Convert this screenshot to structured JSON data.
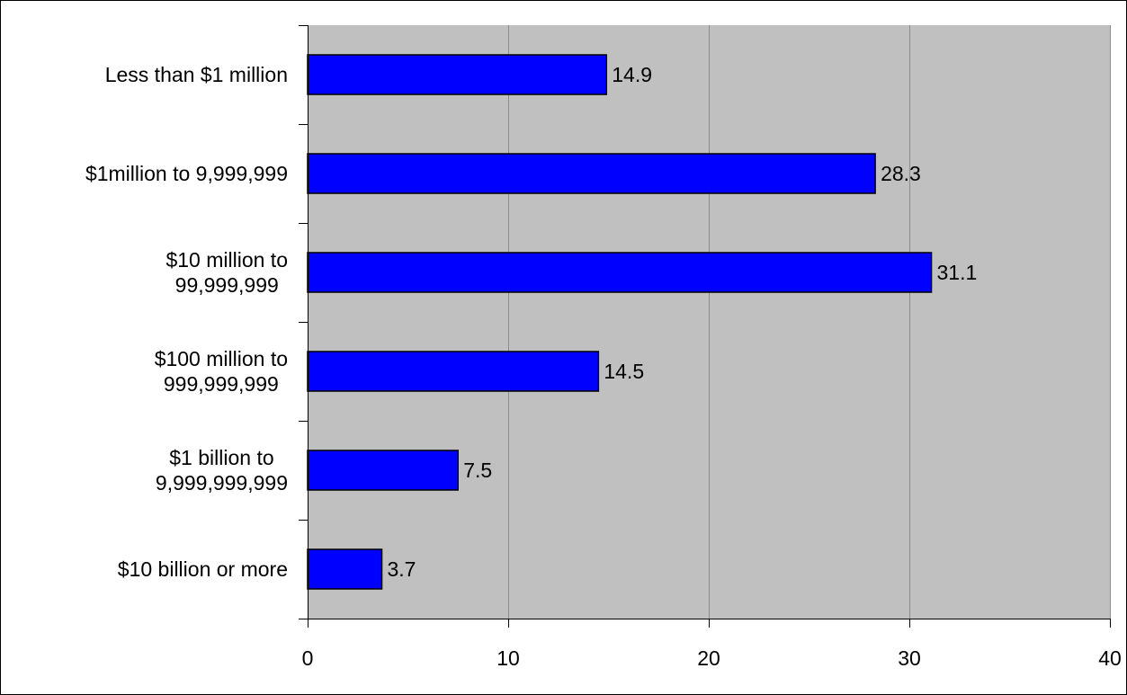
{
  "chart_data": {
    "type": "bar",
    "orientation": "horizontal",
    "title": "",
    "xlabel": "",
    "ylabel": "",
    "categories": [
      [
        "Less than $1 million"
      ],
      [
        "$1million to 9,999,999"
      ],
      [
        "$10 million to",
        "99,999,999"
      ],
      [
        "$100 million to",
        "999,999,999"
      ],
      [
        "$1 billion to",
        "9,999,999,999"
      ],
      [
        "$10 billion or more"
      ]
    ],
    "values": [
      14.9,
      28.3,
      31.1,
      14.5,
      7.5,
      3.7
    ],
    "data_labels": [
      "14.9",
      "28.3",
      "31.1",
      "14.5",
      "7.5",
      "3.7"
    ],
    "xlim": [
      0,
      40
    ],
    "x_ticks": [
      0,
      10,
      20,
      30,
      40
    ],
    "x_tick_labels": [
      "0",
      "10",
      "20",
      "30",
      "40"
    ],
    "grid": "vertical",
    "legend": "none",
    "colors": {
      "bar_fill": "#0000FF",
      "bar_stroke": "#000000",
      "plot_background": "#C0C0C0",
      "gridline": "#8C8C8C",
      "axis": "#000000",
      "frame": "#000000",
      "page_background": "#FFFFFF"
    }
  }
}
